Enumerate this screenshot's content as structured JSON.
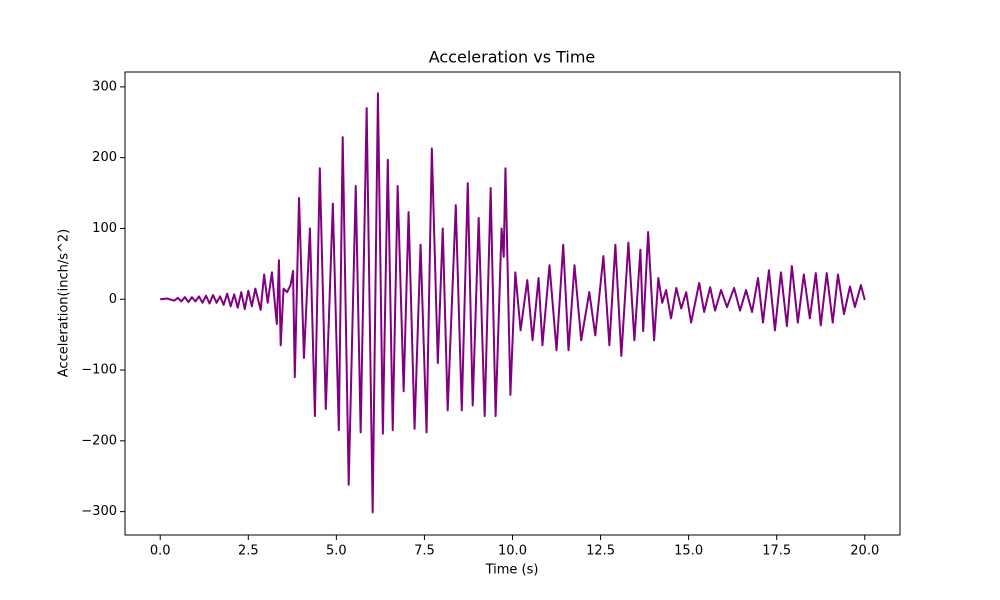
{
  "chart_data": {
    "type": "line",
    "title": "Acceleration vs Time",
    "x_label": "Time (s)",
    "y_label": "Acceleration(inch/s^2)",
    "series": [
      {
        "color": "#800080",
        "x": [
          0,
          0.2,
          0.4,
          0.5,
          0.6,
          0.7,
          0.8,
          0.9,
          1.0,
          1.1,
          1.2,
          1.3,
          1.4,
          1.5,
          1.6,
          1.7,
          1.8,
          1.9,
          2.0,
          2.1,
          2.2,
          2.3,
          2.4,
          2.5,
          2.6,
          2.7,
          2.85,
          2.95,
          3.05,
          3.17,
          3.31,
          3.37,
          3.42,
          3.5,
          3.6,
          3.7,
          3.77,
          3.82,
          3.94,
          4.08,
          4.25,
          4.39,
          4.53,
          4.7,
          4.9,
          5.07,
          5.18,
          5.35,
          5.55,
          5.69,
          5.86,
          6.03,
          6.18,
          6.32,
          6.46,
          6.6,
          6.74,
          6.91,
          7.05,
          7.22,
          7.39,
          7.56,
          7.71,
          7.88,
          8.02,
          8.16,
          8.39,
          8.56,
          8.73,
          8.87,
          9.04,
          9.21,
          9.38,
          9.52,
          9.69,
          9.75,
          9.8,
          9.94,
          10.08,
          10.23,
          10.42,
          10.57,
          10.74,
          10.85,
          11.05,
          11.25,
          11.44,
          11.59,
          11.76,
          11.95,
          12.18,
          12.35,
          12.58,
          12.75,
          12.92,
          13.09,
          13.29,
          13.46,
          13.63,
          13.71,
          13.85,
          14.02,
          14.14,
          14.25,
          14.36,
          14.5,
          14.65,
          14.79,
          14.93,
          15.07,
          15.3,
          15.44,
          15.61,
          15.75,
          15.92,
          16.09,
          16.29,
          16.46,
          16.63,
          16.8,
          16.97,
          17.11,
          17.28,
          17.45,
          17.62,
          17.79,
          17.93,
          18.1,
          18.27,
          18.44,
          18.61,
          18.75,
          18.92,
          19.09,
          19.24,
          19.41,
          19.58,
          19.72,
          19.89,
          20.0
        ],
        "values": [
          0,
          1,
          -2,
          2,
          -3,
          3,
          -4,
          3,
          -3,
          4,
          -5,
          5,
          -6,
          6,
          -5,
          4,
          -8,
          8,
          -10,
          7,
          -12,
          10,
          -14,
          12,
          -10,
          15,
          -15,
          35,
          -5,
          38,
          -35,
          55,
          -65,
          15,
          10,
          20,
          40,
          -110,
          143,
          -83,
          100,
          -165,
          185,
          -155,
          135,
          -185,
          229,
          -262,
          160,
          -188,
          270,
          -301,
          291,
          -190,
          197,
          -185,
          160,
          -130,
          123,
          -183,
          77,
          -188,
          213,
          -90,
          100,
          -157,
          133,
          -157,
          164,
          -150,
          115,
          -165,
          157,
          -165,
          100,
          60,
          185,
          -135,
          38,
          -44,
          27,
          -58,
          30,
          -65,
          48,
          -72,
          77,
          -72,
          48,
          -58,
          10,
          -51,
          61,
          -65,
          77,
          -80,
          80,
          -58,
          70,
          -45,
          95,
          -58,
          30,
          -5,
          13,
          -27,
          16,
          -13,
          10,
          -33,
          23,
          -18,
          17,
          -16,
          13,
          -11,
          16,
          -16,
          13,
          -18,
          30,
          -33,
          41,
          -44,
          38,
          -38,
          47,
          -33,
          35,
          -27,
          37,
          -37,
          37,
          -33,
          35,
          -21,
          18,
          -11,
          20,
          -1
        ]
      }
    ],
    "xlim": [
      -1,
      21
    ],
    "ylim": [
      -333,
      321
    ],
    "xticks": [
      {
        "value": 0,
        "label": "0.0"
      },
      {
        "value": 2.5,
        "label": "2.5"
      },
      {
        "value": 5,
        "label": "5.0"
      },
      {
        "value": 7.5,
        "label": "7.5"
      },
      {
        "value": 10,
        "label": "10.0"
      },
      {
        "value": 12.5,
        "label": "12.5"
      },
      {
        "value": 15,
        "label": "15.0"
      },
      {
        "value": 17.5,
        "label": "17.5"
      },
      {
        "value": 20,
        "label": "20.0"
      }
    ],
    "yticks": [
      {
        "value": -300,
        "label": "−300"
      },
      {
        "value": -200,
        "label": "−200"
      },
      {
        "value": -100,
        "label": "−100"
      },
      0,
      100,
      200,
      300
    ],
    "grid": false
  }
}
